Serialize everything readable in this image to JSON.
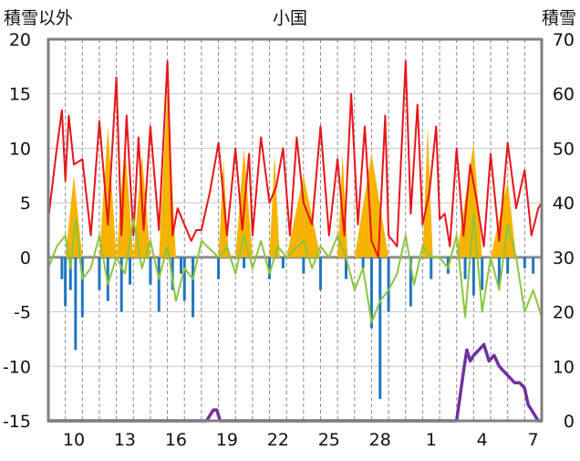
{
  "chart_data": {
    "type": "line",
    "title": "小国",
    "left_axis": {
      "label": "積雪以外",
      "range": [
        -15,
        20
      ],
      "ticks": [
        "20",
        "15",
        "10",
        "5",
        "0",
        "-5",
        "-10",
        "-15"
      ]
    },
    "right_axis": {
      "label": "積雪",
      "range": [
        0,
        70
      ],
      "ticks": [
        "70",
        "60",
        "50",
        "40",
        "30",
        "20",
        "10",
        "0"
      ]
    },
    "x_axis": {
      "range": [
        0,
        29
      ],
      "tick_labels": [
        "10",
        "13",
        "16",
        "19",
        "22",
        "25",
        "28",
        "1",
        "4",
        "7"
      ],
      "tick_positions": [
        1.5,
        4.5,
        7.5,
        10.5,
        13.5,
        16.5,
        19.5,
        22.5,
        25.5,
        28.5
      ],
      "gridline_interval": 1
    },
    "grid": true,
    "series": [
      {
        "axis": "left",
        "kind": "line",
        "color": "#e8141b",
        "x": [
          0,
          0.5,
          0.8,
          1,
          1.2,
          1.5,
          2,
          2.5,
          3,
          3.5,
          4,
          4.3,
          4.6,
          5,
          5.3,
          5.6,
          6,
          6.5,
          7,
          7.3,
          7.6,
          8,
          8.4,
          8.7,
          9,
          9.5,
          10,
          10.5,
          11,
          11.4,
          11.8,
          12,
          12.5,
          13,
          13.4,
          13.8,
          14.2,
          14.6,
          15,
          15.5,
          16,
          16.5,
          17,
          17.4,
          17.8,
          18.2,
          18.6,
          19,
          19.4,
          19.8,
          20,
          20.5,
          21,
          21.3,
          21.7,
          22,
          22.4,
          22.8,
          23,
          23.3,
          23.6,
          24,
          24.4,
          24.8,
          25.2,
          25.6,
          26,
          26.5,
          27,
          27.5,
          28,
          28.4,
          28.8,
          29
        ],
        "y": [
          3.5,
          10,
          13.5,
          7,
          13,
          8.5,
          9,
          2,
          12.5,
          3,
          16.5,
          2,
          13,
          2,
          11,
          2.5,
          12,
          2.5,
          18,
          2,
          4.5,
          3,
          1.5,
          2.5,
          2.5,
          6,
          10.5,
          2,
          10,
          2.5,
          9.5,
          2,
          11,
          5,
          6.5,
          10,
          2,
          11,
          5,
          3,
          12,
          2,
          9,
          2,
          15,
          3,
          12,
          1.5,
          0,
          13,
          2,
          1,
          18,
          4,
          14,
          3,
          6,
          12,
          3.5,
          4,
          1,
          10,
          2,
          8.5,
          5,
          1,
          9.5,
          1.5,
          10.5,
          4.5,
          8,
          2,
          4.5,
          5
        ]
      },
      {
        "axis": "left",
        "kind": "area",
        "color": "#f4b400",
        "x": [
          0,
          1,
          1.5,
          2,
          3,
          3.5,
          4,
          4.5,
          5,
          5.5,
          6,
          6.5,
          7,
          7.5,
          8,
          9,
          10,
          10.3,
          10.6,
          11,
          11.5,
          12,
          13,
          13.3,
          13.6,
          14,
          15,
          16,
          17,
          17.3,
          17.6,
          18,
          19,
          20,
          21,
          22,
          22.3,
          22.6,
          23,
          24,
          25,
          25.5,
          26,
          27,
          27.5,
          28,
          29
        ],
        "y": [
          0,
          0,
          7.5,
          0,
          0,
          12,
          0,
          10.5,
          0,
          9.5,
          0,
          0,
          15.5,
          0,
          0,
          0,
          0,
          9,
          0,
          0,
          10,
          0,
          0,
          9.5,
          0,
          0,
          7.5,
          0,
          0,
          9.5,
          0,
          0,
          9.5,
          0,
          0,
          0,
          12,
          0,
          0,
          0,
          10.5,
          0,
          0,
          7,
          0,
          0,
          0
        ]
      },
      {
        "axis": "left",
        "kind": "bar",
        "color": "#1f77c1",
        "x": [
          0.8,
          1,
          1.3,
          1.6,
          2,
          3,
          3.5,
          4.3,
          4.8,
          6,
          6.5,
          7.3,
          7.8,
          8,
          8.5,
          10,
          11.5,
          13,
          13.8,
          15,
          16,
          17.5,
          18.5,
          19,
          19.5,
          20,
          21.3,
          22.5,
          23.5,
          24.5,
          25,
          25.5,
          26.5,
          27,
          28,
          28.5
        ],
        "y": [
          -2,
          -4.5,
          -3,
          -8.5,
          -5.5,
          -3,
          -4,
          -5,
          -2.5,
          -2.5,
          -5,
          -3,
          -1.5,
          -4,
          -5.5,
          -2,
          -1,
          -2,
          -1,
          -1.5,
          -3,
          -2,
          -1,
          -6.5,
          -13,
          -5,
          -4.5,
          -2,
          -1.5,
          -2,
          -3.5,
          -3,
          -2.5,
          -1.5,
          -1,
          -1.5
        ]
      },
      {
        "axis": "left",
        "kind": "line",
        "color": "#8bc53f",
        "x": [
          0,
          0.5,
          1,
          1.3,
          1.6,
          2,
          2.5,
          3,
          3.5,
          4,
          4.5,
          5,
          5.5,
          6,
          6.5,
          7,
          7.5,
          8,
          8.5,
          9,
          10,
          10.5,
          11,
          11.5,
          12,
          12.5,
          13,
          13.5,
          14,
          15,
          15.5,
          16,
          16.5,
          17,
          17.5,
          18,
          18.5,
          19,
          19.5,
          20,
          20.5,
          21,
          21.5,
          22,
          22.5,
          23,
          23.5,
          24,
          24.5,
          25,
          25.5,
          26,
          26.5,
          27,
          27.5,
          28,
          28.5,
          29
        ],
        "y": [
          -1,
          1,
          2,
          -1,
          3.5,
          -2,
          -1,
          2,
          -2.5,
          0,
          -1.5,
          3.5,
          -1,
          1.5,
          -2,
          1,
          -4,
          -1,
          -2,
          1.5,
          0,
          1,
          -1.5,
          2,
          -1,
          1.5,
          -1.5,
          1,
          0,
          1.5,
          -1,
          1,
          0,
          2,
          0,
          -3,
          -1,
          -6,
          -4,
          -3,
          -1.5,
          2,
          -2.5,
          1,
          0,
          0,
          -1,
          2,
          -5.5,
          4,
          -5,
          0,
          -3,
          3,
          0,
          -5,
          -3,
          -5.5
        ]
      },
      {
        "axis": "right",
        "kind": "line",
        "color": "#7030a0",
        "x": [
          0,
          9,
          9.3,
          9.5,
          9.7,
          9.9,
          10.1,
          10.5,
          24,
          24.4,
          24.6,
          24.8,
          25,
          25.3,
          25.6,
          25.9,
          26.2,
          26.5,
          26.8,
          27.1,
          27.4,
          27.7,
          28,
          28.2,
          28.4,
          28.6,
          28.8,
          29
        ],
        "y": [
          0,
          0,
          0,
          1,
          2,
          2,
          0,
          0,
          0,
          9,
          13,
          11,
          12,
          13,
          14,
          11,
          12,
          10,
          9,
          8,
          7,
          7,
          6,
          3,
          2,
          1,
          0,
          0
        ]
      }
    ]
  }
}
